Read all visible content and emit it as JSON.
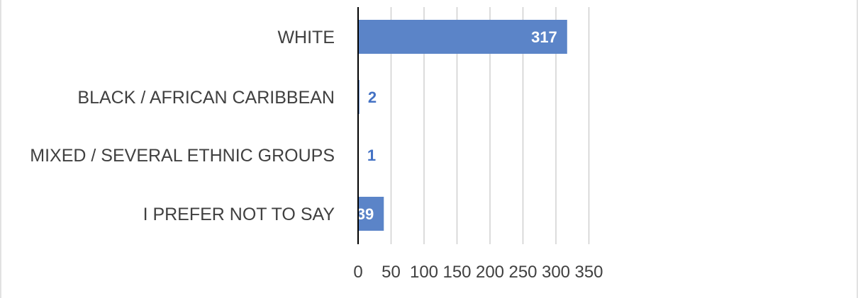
{
  "chart_data": {
    "type": "bar",
    "orientation": "horizontal",
    "categories": [
      "WHITE",
      "BLACK / AFRICAN CARIBBEAN",
      "MIXED / SEVERAL ETHNIC GROUPS",
      "I PREFER NOT TO SAY"
    ],
    "values": [
      317,
      2,
      1,
      39
    ],
    "title": "",
    "xlabel": "",
    "ylabel": "",
    "xlim": [
      0,
      350
    ],
    "xticks": [
      0,
      50,
      100,
      150,
      200,
      250,
      300,
      350
    ],
    "xtick_labels": [
      "0",
      "50",
      "100",
      "150",
      "200",
      "250",
      "300",
      "350"
    ],
    "grid": "vertical",
    "legend": "none",
    "colors": {
      "bar": "#5b84c8",
      "label_inside": "#ffffff",
      "label_outside": "#4472c4",
      "text": "#404040"
    }
  }
}
